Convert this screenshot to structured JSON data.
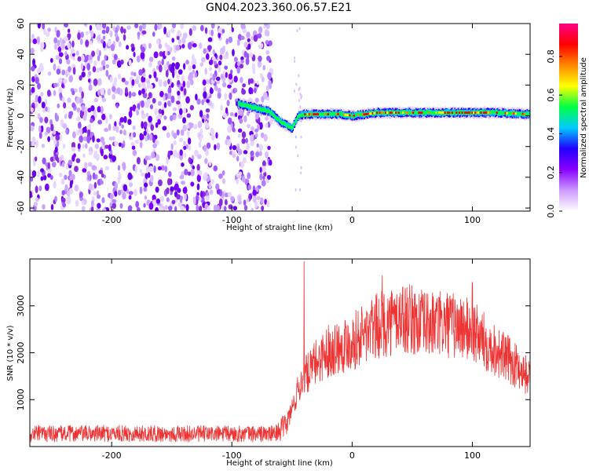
{
  "title": "GN04.2023.360.06.57.E21",
  "chart_data": [
    {
      "type": "heatmap",
      "xlabel": "Height of straight line (km)",
      "ylabel": "Frequency (Hz)",
      "xlim": [
        -268,
        148
      ],
      "ylim": [
        -62,
        60
      ],
      "xticks": [
        -200,
        -100,
        0,
        100
      ],
      "xtick_labels": [
        "-200",
        "-100",
        "0",
        "100"
      ],
      "yticks": [
        -60,
        -40,
        -20,
        0,
        20,
        40,
        60
      ],
      "ytick_labels": [
        "-60",
        "-40",
        "-20",
        "0",
        "20",
        "40",
        "60"
      ],
      "noise_region_x": [
        -268,
        -67
      ],
      "ridge": {
        "x": [
          -95,
          -80,
          -70,
          -65,
          -60,
          -55,
          -50,
          -47,
          -45,
          -40,
          -30,
          -20,
          -10,
          0,
          10,
          20,
          40,
          60,
          80,
          100,
          120,
          148
        ],
        "y": [
          8,
          5,
          3,
          0,
          -4,
          -6,
          -8,
          -3,
          0,
          1,
          1,
          1,
          1,
          0,
          1,
          2,
          2,
          2,
          2,
          2,
          2,
          1
        ]
      },
      "colorbar": {
        "label": "Normalized spectral amplitude",
        "ticks": [
          0.0,
          0.2,
          0.4,
          0.6,
          0.8
        ],
        "tick_labels": [
          "0.0",
          "0.2",
          "0.4",
          "0.6",
          "0.8"
        ],
        "colors": [
          "#ffffff",
          "#cc99ff",
          "#8800ff",
          "#2200ff",
          "#00ccff",
          "#00ff44",
          "#ffff00",
          "#ff8800",
          "#ff0000",
          "#ff0088"
        ]
      }
    },
    {
      "type": "line",
      "xlabel": "Height of straight line (km)",
      "ylabel": "SNR (10 * v/v)",
      "xlim": [
        -268,
        148
      ],
      "ylim": [
        0,
        4000
      ],
      "xticks": [
        -200,
        -100,
        0,
        100
      ],
      "xtick_labels": [
        "-200",
        "-100",
        "0",
        "100"
      ],
      "yticks": [
        1000,
        2000,
        3000
      ],
      "ytick_labels": [
        "1000",
        "2000",
        "3000"
      ],
      "color": "#ee3333",
      "envelope": {
        "x": [
          -268,
          -200,
          -150,
          -100,
          -65,
          -55,
          -50,
          -45,
          -40,
          -35,
          -30,
          -20,
          -10,
          0,
          10,
          20,
          30,
          40,
          50,
          60,
          70,
          80,
          90,
          100,
          110,
          120,
          130,
          140,
          148
        ],
        "y": [
          270,
          280,
          270,
          270,
          270,
          450,
          800,
          1200,
          1500,
          1600,
          1800,
          2050,
          2150,
          2250,
          2400,
          2550,
          2650,
          2750,
          2700,
          2600,
          2600,
          2600,
          2550,
          2450,
          2250,
          2050,
          1850,
          1650,
          1450
        ]
      },
      "peaks": [
        {
          "x": -40,
          "y": 3950
        },
        {
          "x": 25,
          "y": 3650
        },
        {
          "x": 42,
          "y": 3400
        },
        {
          "x": 100,
          "y": 3500
        }
      ]
    }
  ]
}
